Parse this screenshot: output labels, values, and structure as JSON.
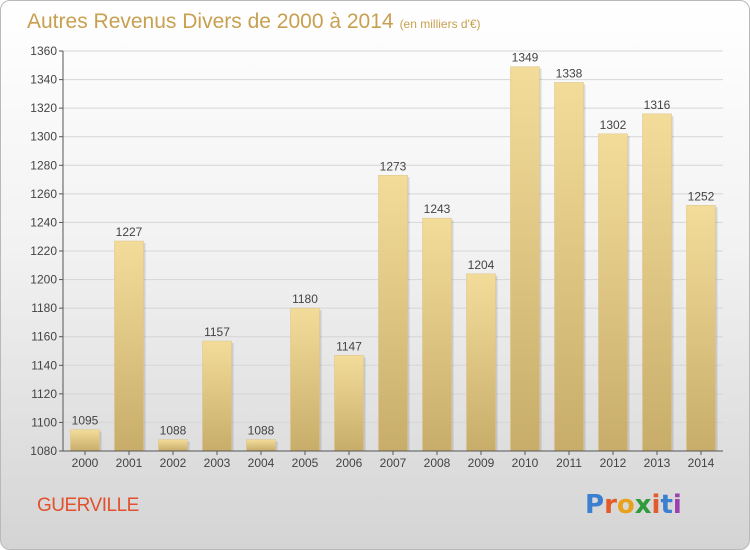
{
  "title": "Autres Revenus Divers de 2000 à 2014",
  "subtitle": "(en milliers d'€)",
  "commune": "GUERVILLE",
  "logo": {
    "letters": [
      "P",
      "r",
      "o",
      "x",
      "i",
      "t",
      "i"
    ],
    "colors": [
      "#3a7fd0",
      "#e35b2a",
      "#e8a21a",
      "#2f9b3a",
      "#e35b2a",
      "#3a7fd0",
      "#9c3fb0"
    ]
  },
  "colors": {
    "bar_light": "#f3dc9a",
    "bar_dark": "#c8ad6a",
    "title": "#c8a050",
    "commune": "#e2502e"
  },
  "chart_data": {
    "type": "bar",
    "categories": [
      "2000",
      "2001",
      "2002",
      "2003",
      "2004",
      "2005",
      "2006",
      "2007",
      "2008",
      "2009",
      "2010",
      "2011",
      "2012",
      "2013",
      "2014"
    ],
    "values": [
      1095,
      1227,
      1088,
      1157,
      1088,
      1180,
      1147,
      1273,
      1243,
      1204,
      1349,
      1338,
      1302,
      1316,
      1252
    ],
    "ylim": [
      1080,
      1360
    ],
    "yticks": [
      1080,
      1100,
      1120,
      1140,
      1160,
      1180,
      1200,
      1220,
      1240,
      1260,
      1280,
      1300,
      1320,
      1340,
      1360
    ],
    "grid": true,
    "data_labels": true
  }
}
